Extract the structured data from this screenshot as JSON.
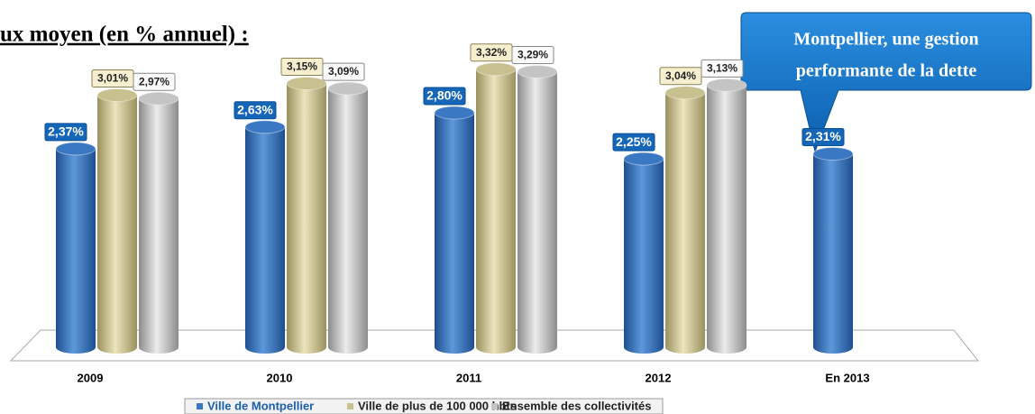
{
  "chart_data": {
    "type": "bar",
    "title": "ux moyen (en % annuel) :",
    "annotation": [
      "Montpellier, une gestion",
      "performante de la dette"
    ],
    "categories": [
      "2009",
      "2010",
      "2011",
      "2012",
      "En 2013"
    ],
    "ylim": [
      0,
      3.5
    ],
    "legend": "bottom",
    "series": [
      {
        "name": "Ville de Montpellier",
        "color": "#3b78c4",
        "values": [
          2.37,
          2.63,
          2.8,
          2.25,
          2.31
        ],
        "value_labels": [
          "2,37%",
          "2,63%",
          "2,80%",
          "2,25%",
          "2,31%"
        ]
      },
      {
        "name": "Ville de plus de 100 000 hbts",
        "color": "#c9c090",
        "values": [
          3.01,
          3.15,
          3.32,
          3.04,
          null
        ],
        "value_labels": [
          "3,01%",
          "3,15%",
          "3,32%",
          "3,04%",
          null
        ]
      },
      {
        "name": "Ensemble des collectivités",
        "color": "#c4c4c4",
        "values": [
          2.97,
          3.09,
          3.29,
          3.13,
          null
        ],
        "value_labels": [
          "2,97%",
          "3,09%",
          "3,29%",
          "3,13%",
          null
        ]
      }
    ]
  }
}
